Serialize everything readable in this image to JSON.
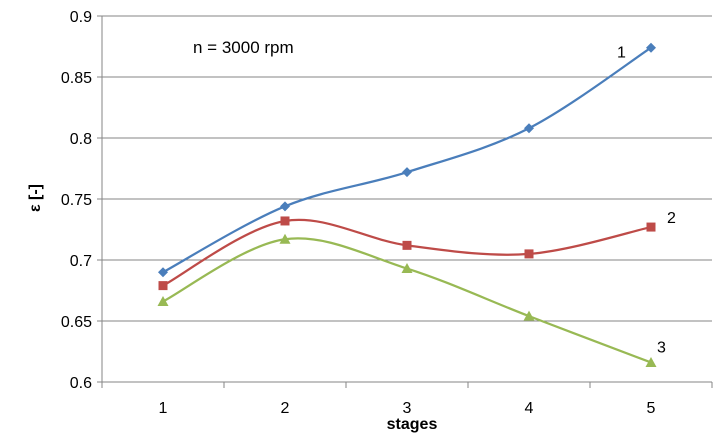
{
  "chart_data": {
    "type": "line",
    "title": "",
    "xlabel": "stages",
    "ylabel": "ε [-]",
    "categories": [
      "1",
      "2",
      "3",
      "4",
      "5"
    ],
    "ylim": [
      0.6,
      0.9
    ],
    "yticks": [
      "0.6",
      "0.65",
      "0.7",
      "0.75",
      "0.8",
      "0.85",
      "0.9"
    ],
    "grid": "horizontal",
    "smooth": true,
    "annotation": "n = 3000 rpm",
    "series": [
      {
        "label": "1",
        "color": "#4a7ebb",
        "marker": "diamond",
        "values": [
          0.69,
          0.744,
          0.772,
          0.808,
          0.874
        ]
      },
      {
        "label": "2",
        "color": "#be4b48",
        "marker": "square",
        "values": [
          0.679,
          0.732,
          0.712,
          0.705,
          0.727
        ]
      },
      {
        "label": "3",
        "color": "#98b954",
        "marker": "triangle",
        "values": [
          0.666,
          0.717,
          0.693,
          0.654,
          0.616
        ]
      }
    ]
  }
}
